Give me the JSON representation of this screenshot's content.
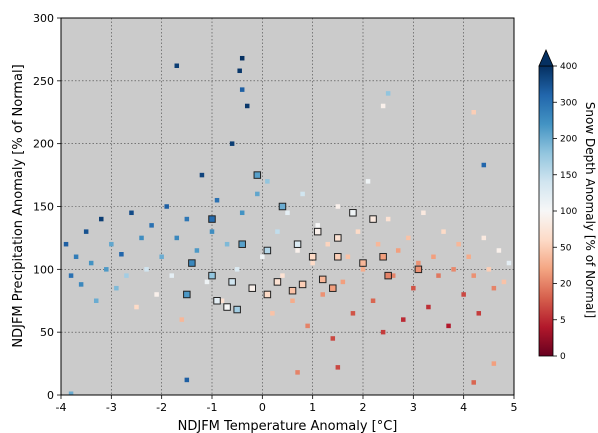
{
  "chart_data": {
    "type": "scatter",
    "xlabel": "NDJFM Temperature Anomaly [°C]",
    "ylabel": "NDJFM Precipitation Anomaly [% of Normal]",
    "xlim": [
      -4,
      5
    ],
    "ylim": [
      0,
      300
    ],
    "xticks": [
      "-4",
      "-3",
      "-2",
      "-1",
      "0",
      "1",
      "2",
      "3",
      "4",
      "5"
    ],
    "yticks": [
      "0",
      "50",
      "100",
      "150",
      "200",
      "250",
      "300"
    ],
    "grid": true,
    "grid_style": "dotted",
    "background_color": "#cbcbcb",
    "colorbar": {
      "label": "Snow Depth Anomaly [% of Normal]",
      "ticks": [
        "0",
        "5",
        "20",
        "50",
        "100",
        "150",
        "200",
        "300",
        "400"
      ],
      "tick_values": [
        0,
        5,
        20,
        50,
        100,
        150,
        200,
        300,
        400
      ],
      "extend": "max",
      "colormap": "RdBu",
      "colors": [
        "#67001f",
        "#b2182b",
        "#d6604d",
        "#f4a582",
        "#fddbc7",
        "#f7f7f7",
        "#d1e5f0",
        "#92c5de",
        "#4393c3",
        "#2166ac",
        "#053061"
      ]
    },
    "points": [
      {
        "x": -3.9,
        "y": 120,
        "c": 330
      },
      {
        "x": -3.8,
        "y": 95,
        "c": 300
      },
      {
        "x": -3.7,
        "y": 110,
        "c": 280
      },
      {
        "x": -3.6,
        "y": 88,
        "c": 260
      },
      {
        "x": -3.5,
        "y": 130,
        "c": 350
      },
      {
        "x": -3.4,
        "y": 105,
        "c": 240
      },
      {
        "x": -3.3,
        "y": 75,
        "c": 200
      },
      {
        "x": -3.2,
        "y": 140,
        "c": 380
      },
      {
        "x": -3.1,
        "y": 100,
        "c": 230
      },
      {
        "x": -3.0,
        "y": 120,
        "c": 210
      },
      {
        "x": -2.9,
        "y": 85,
        "c": 190
      },
      {
        "x": -2.8,
        "y": 112,
        "c": 320
      },
      {
        "x": -2.7,
        "y": 95,
        "c": 170
      },
      {
        "x": -2.6,
        "y": 145,
        "c": 360
      },
      {
        "x": -2.5,
        "y": 70,
        "c": 60
      },
      {
        "x": -2.4,
        "y": 125,
        "c": 250
      },
      {
        "x": -2.3,
        "y": 100,
        "c": 140
      },
      {
        "x": -2.2,
        "y": 135,
        "c": 300
      },
      {
        "x": -2.1,
        "y": 80,
        "c": 90
      },
      {
        "x": -2.0,
        "y": 110,
        "c": 200
      },
      {
        "x": -1.9,
        "y": 150,
        "c": 330
      },
      {
        "x": -1.8,
        "y": 95,
        "c": 120
      },
      {
        "x": -1.7,
        "y": 125,
        "c": 260
      },
      {
        "x": -1.6,
        "y": 60,
        "c": 40
      },
      {
        "x": -1.5,
        "y": 140,
        "c": 290
      },
      {
        "x": -1.4,
        "y": 105,
        "c": 180
      },
      {
        "x": -1.3,
        "y": 115,
        "c": 230
      },
      {
        "x": -1.2,
        "y": 175,
        "c": 370
      },
      {
        "x": -1.1,
        "y": 90,
        "c": 110
      },
      {
        "x": -1.0,
        "y": 130,
        "c": 250
      },
      {
        "x": -0.9,
        "y": 155,
        "c": 300
      },
      {
        "x": -0.8,
        "y": 75,
        "c": 70
      },
      {
        "x": -0.7,
        "y": 120,
        "c": 190
      },
      {
        "x": -0.6,
        "y": 200,
        "c": 380
      },
      {
        "x": -0.5,
        "y": 100,
        "c": 130
      },
      {
        "x": -0.4,
        "y": 145,
        "c": 240
      },
      {
        "x": -0.3,
        "y": 230,
        "c": 390
      },
      {
        "x": -0.2,
        "y": 85,
        "c": 80
      },
      {
        "x": -0.1,
        "y": 160,
        "c": 210
      },
      {
        "x": 0.0,
        "y": 110,
        "c": 110
      },
      {
        "x": 0.1,
        "y": 170,
        "c": 180
      },
      {
        "x": 0.2,
        "y": 65,
        "c": 45
      },
      {
        "x": 0.3,
        "y": 130,
        "c": 150
      },
      {
        "x": 0.4,
        "y": 95,
        "c": 70
      },
      {
        "x": 0.5,
        "y": 145,
        "c": 120
      },
      {
        "x": 0.6,
        "y": 75,
        "c": 35
      },
      {
        "x": 0.7,
        "y": 115,
        "c": 90
      },
      {
        "x": 0.8,
        "y": 160,
        "c": 140
      },
      {
        "x": 0.9,
        "y": 55,
        "c": 20
      },
      {
        "x": 1.0,
        "y": 105,
        "c": 60
      },
      {
        "x": 1.1,
        "y": 135,
        "c": 100
      },
      {
        "x": 1.2,
        "y": 80,
        "c": 25
      },
      {
        "x": 1.3,
        "y": 120,
        "c": 55
      },
      {
        "x": 1.4,
        "y": 45,
        "c": 10
      },
      {
        "x": 1.5,
        "y": 150,
        "c": 90
      },
      {
        "x": 1.6,
        "y": 90,
        "c": 30
      },
      {
        "x": 1.7,
        "y": 110,
        "c": 45
      },
      {
        "x": 1.8,
        "y": 65,
        "c": 12
      },
      {
        "x": 1.9,
        "y": 130,
        "c": 60
      },
      {
        "x": 2.0,
        "y": 100,
        "c": 35
      },
      {
        "x": 2.1,
        "y": 170,
        "c": 110
      },
      {
        "x": 2.2,
        "y": 75,
        "c": 15
      },
      {
        "x": 2.3,
        "y": 120,
        "c": 40
      },
      {
        "x": 2.4,
        "y": 50,
        "c": 8
      },
      {
        "x": 2.5,
        "y": 140,
        "c": 70
      },
      {
        "x": 2.6,
        "y": 95,
        "c": 20
      },
      {
        "x": 2.7,
        "y": 115,
        "c": 30
      },
      {
        "x": 2.8,
        "y": 60,
        "c": 5
      },
      {
        "x": 2.9,
        "y": 125,
        "c": 45
      },
      {
        "x": 3.0,
        "y": 85,
        "c": 12
      },
      {
        "x": 3.1,
        "y": 105,
        "c": 25
      },
      {
        "x": 3.2,
        "y": 145,
        "c": 80
      },
      {
        "x": 3.3,
        "y": 70,
        "c": 6
      },
      {
        "x": 3.4,
        "y": 110,
        "c": 30
      },
      {
        "x": 3.5,
        "y": 95,
        "c": 18
      },
      {
        "x": 3.6,
        "y": 130,
        "c": 60
      },
      {
        "x": 3.7,
        "y": 55,
        "c": 4
      },
      {
        "x": 3.8,
        "y": 100,
        "c": 22
      },
      {
        "x": 3.9,
        "y": 120,
        "c": 40
      },
      {
        "x": 4.0,
        "y": 80,
        "c": 10
      },
      {
        "x": 4.1,
        "y": 110,
        "c": 35
      },
      {
        "x": 4.2,
        "y": 95,
        "c": 25
      },
      {
        "x": 4.3,
        "y": 65,
        "c": 8
      },
      {
        "x": 4.4,
        "y": 125,
        "c": 80
      },
      {
        "x": 4.5,
        "y": 100,
        "c": 50
      },
      {
        "x": 4.6,
        "y": 85,
        "c": 20
      },
      {
        "x": 4.7,
        "y": 115,
        "c": 90
      },
      {
        "x": 4.8,
        "y": 90,
        "c": 45
      },
      {
        "x": 4.9,
        "y": 105,
        "c": 120
      },
      {
        "x": -1.7,
        "y": 262,
        "c": 380
      },
      {
        "x": -0.4,
        "y": 268,
        "c": 400
      },
      {
        "x": -0.45,
        "y": 258,
        "c": 390
      },
      {
        "x": -0.4,
        "y": 243,
        "c": 330
      },
      {
        "x": 2.5,
        "y": 240,
        "c": 180
      },
      {
        "x": 2.4,
        "y": 230,
        "c": 90
      },
      {
        "x": 4.2,
        "y": 225,
        "c": 50
      },
      {
        "x": 4.4,
        "y": 183,
        "c": 320
      },
      {
        "x": -1.5,
        "y": 12,
        "c": 330
      },
      {
        "x": -3.8,
        "y": 1,
        "c": 200
      },
      {
        "x": 4.2,
        "y": 10,
        "c": 15
      },
      {
        "x": 4.6,
        "y": 25,
        "c": 30
      },
      {
        "x": 0.7,
        "y": 18,
        "c": 20
      },
      {
        "x": 1.5,
        "y": 22,
        "c": 10
      }
    ],
    "highlighted_points": [
      {
        "x": -0.1,
        "y": 175,
        "c": 220
      },
      {
        "x": 0.4,
        "y": 150,
        "c": 200
      },
      {
        "x": 1.1,
        "y": 130,
        "c": 90
      },
      {
        "x": 1.5,
        "y": 125,
        "c": 70
      },
      {
        "x": 1.8,
        "y": 145,
        "c": 110
      },
      {
        "x": 2.2,
        "y": 140,
        "c": 80
      },
      {
        "x": -1.0,
        "y": 140,
        "c": 310
      },
      {
        "x": -0.4,
        "y": 120,
        "c": 220
      },
      {
        "x": 0.1,
        "y": 115,
        "c": 160
      },
      {
        "x": 0.7,
        "y": 120,
        "c": 130
      },
      {
        "x": 1.0,
        "y": 110,
        "c": 60
      },
      {
        "x": 1.5,
        "y": 110,
        "c": 50
      },
      {
        "x": 2.0,
        "y": 105,
        "c": 40
      },
      {
        "x": 2.4,
        "y": 110,
        "c": 30
      },
      {
        "x": 3.1,
        "y": 100,
        "c": 25
      },
      {
        "x": -1.4,
        "y": 105,
        "c": 260
      },
      {
        "x": -1.0,
        "y": 95,
        "c": 180
      },
      {
        "x": -0.6,
        "y": 90,
        "c": 140
      },
      {
        "x": -0.2,
        "y": 85,
        "c": 90
      },
      {
        "x": 0.3,
        "y": 90,
        "c": 70
      },
      {
        "x": 0.8,
        "y": 88,
        "c": 50
      },
      {
        "x": 1.2,
        "y": 92,
        "c": 40
      },
      {
        "x": -1.5,
        "y": 80,
        "c": 230
      },
      {
        "x": -0.9,
        "y": 75,
        "c": 120
      },
      {
        "x": -0.5,
        "y": 68,
        "c": 170
      },
      {
        "x": 0.1,
        "y": 80,
        "c": 60
      },
      {
        "x": 0.6,
        "y": 83,
        "c": 45
      },
      {
        "x": 1.4,
        "y": 85,
        "c": 30
      },
      {
        "x": 2.5,
        "y": 95,
        "c": 20
      },
      {
        "x": -0.7,
        "y": 70,
        "c": 100
      }
    ]
  }
}
